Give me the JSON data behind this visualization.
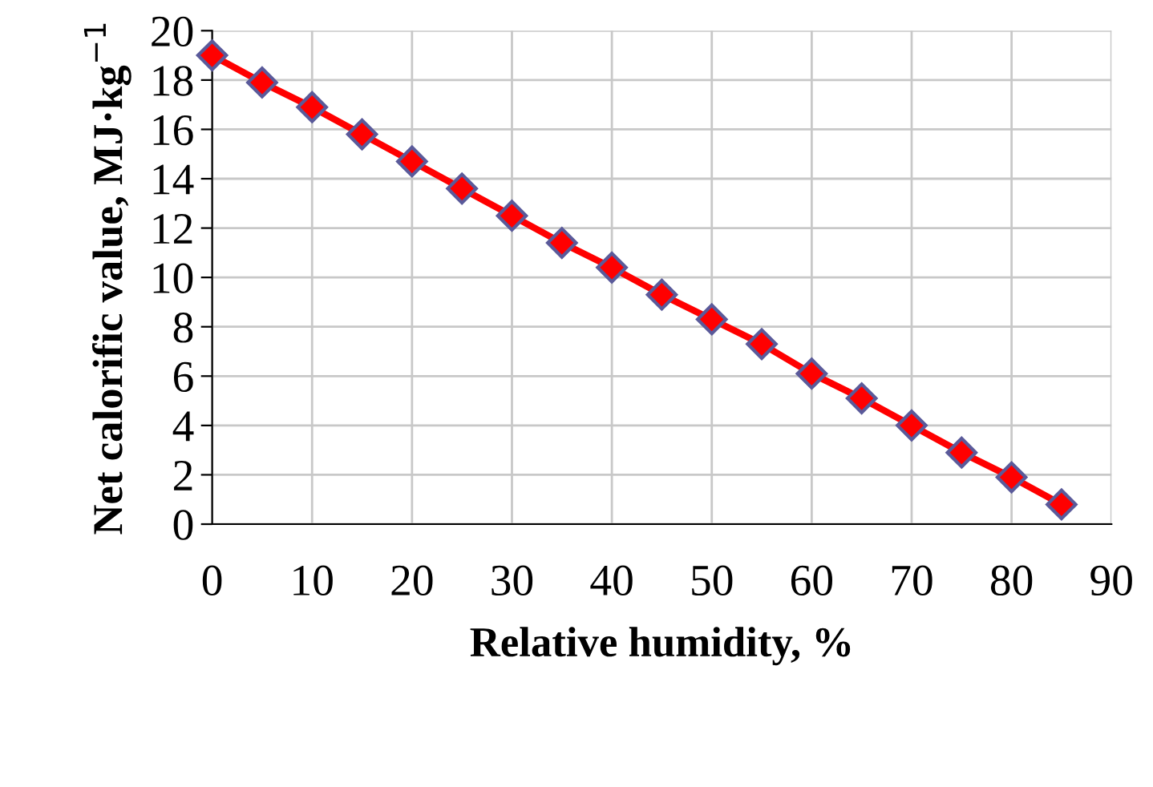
{
  "chart_data": {
    "type": "line",
    "xlabel": "Relative humidity, %",
    "ylabel": "Net calorific value, MJ·kg$^{−1}$",
    "x": [
      0,
      5,
      10,
      15,
      20,
      25,
      30,
      35,
      40,
      45,
      50,
      55,
      60,
      65,
      70,
      75,
      80,
      85
    ],
    "series": [
      {
        "color": "#ff0000",
        "values": [
          19.0,
          17.9,
          16.9,
          15.8,
          14.7,
          13.6,
          12.5,
          11.4,
          10.4,
          9.3,
          8.3,
          7.3,
          6.1,
          5.1,
          4.0,
          2.9,
          1.9,
          0.8
        ]
      }
    ],
    "marker": "diamond",
    "line_style": "solid",
    "grid": true,
    "legend": false,
    "xlim": [
      0,
      90
    ],
    "xticks": [
      0,
      10,
      20,
      30,
      40,
      50,
      60,
      70,
      80,
      90
    ],
    "ylim": [
      0,
      20
    ],
    "yticks": [
      0,
      2,
      4,
      6,
      8,
      10,
      12,
      14,
      16,
      18,
      20
    ]
  }
}
